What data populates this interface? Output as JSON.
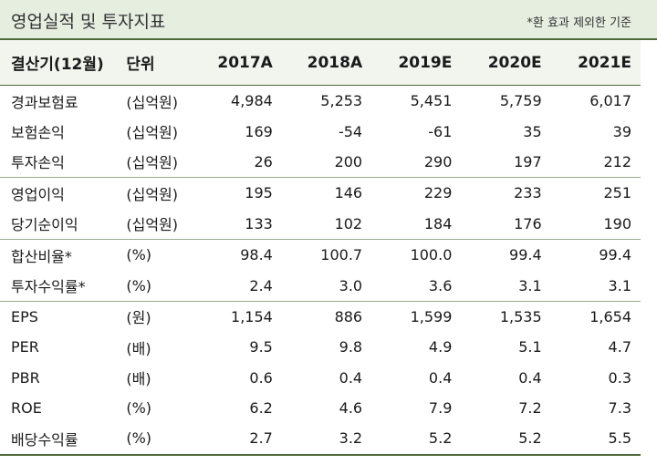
{
  "header": {
    "title": "영업실적 및 투자지표",
    "note": "*환 효과 제외한 기준"
  },
  "table": {
    "columns": [
      "결산기(12월)",
      "단위",
      "2017A",
      "2018A",
      "2019E",
      "2020E",
      "2021E"
    ],
    "rows": [
      {
        "label": "경과보험료",
        "unit": "(십억원)",
        "values": [
          "4,984",
          "5,253",
          "5,451",
          "5,759",
          "6,017"
        ]
      },
      {
        "label": "보험손익",
        "unit": "(십억원)",
        "values": [
          "169",
          "-54",
          "-61",
          "35",
          "39"
        ]
      },
      {
        "label": "투자손익",
        "unit": "(십억원)",
        "values": [
          "26",
          "200",
          "290",
          "197",
          "212"
        ]
      },
      {
        "label": "영업이익",
        "unit": "(십억원)",
        "values": [
          "195",
          "146",
          "229",
          "233",
          "251"
        ]
      },
      {
        "label": "당기순이익",
        "unit": "(십억원)",
        "values": [
          "133",
          "102",
          "184",
          "176",
          "190"
        ]
      },
      {
        "label": "합산비율*",
        "unit": "(%)",
        "values": [
          "98.4",
          "100.7",
          "100.0",
          "99.4",
          "99.4"
        ]
      },
      {
        "label": "투자수익률*",
        "unit": "(%)",
        "values": [
          "2.4",
          "3.0",
          "3.6",
          "3.1",
          "3.1"
        ]
      },
      {
        "label": "EPS",
        "unit": "(원)",
        "values": [
          "1,154",
          "886",
          "1,599",
          "1,535",
          "1,654"
        ]
      },
      {
        "label": "PER",
        "unit": "(배)",
        "values": [
          "9.5",
          "9.8",
          "4.9",
          "5.1",
          "4.7"
        ]
      },
      {
        "label": "PBR",
        "unit": "(배)",
        "values": [
          "0.6",
          "0.4",
          "0.4",
          "0.4",
          "0.3"
        ]
      },
      {
        "label": "ROE",
        "unit": "(%)",
        "values": [
          "6.2",
          "4.6",
          "7.9",
          "7.2",
          "7.3"
        ]
      },
      {
        "label": "배당수익률",
        "unit": "(%)",
        "values": [
          "2.7",
          "3.2",
          "5.2",
          "5.2",
          "5.5"
        ]
      }
    ]
  }
}
